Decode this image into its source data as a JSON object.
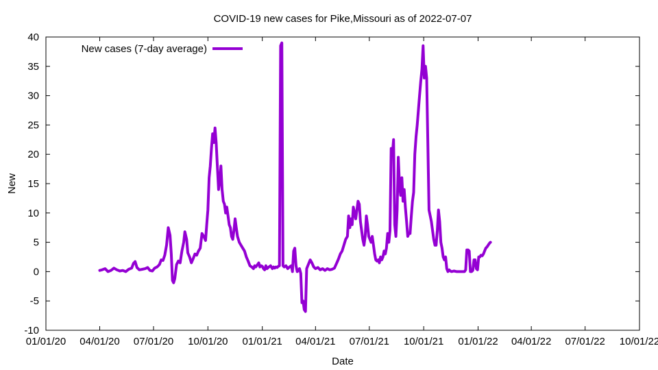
{
  "chart_data": {
    "type": "line",
    "title": "COVID-19 new cases for Pike,Missouri as of 2022-07-07",
    "xlabel": "Date",
    "ylabel": "New",
    "ylim": [
      -10,
      40
    ],
    "yticks": [
      -10,
      -5,
      0,
      5,
      10,
      15,
      20,
      25,
      30,
      35,
      40
    ],
    "xlim_days": [
      0,
      1004
    ],
    "xticks": [
      {
        "day": 0,
        "label": "01/01/20"
      },
      {
        "day": 91,
        "label": "04/01/20"
      },
      {
        "day": 182,
        "label": "07/01/20"
      },
      {
        "day": 274,
        "label": "10/01/20"
      },
      {
        "day": 366,
        "label": "01/01/21"
      },
      {
        "day": 456,
        "label": "04/01/21"
      },
      {
        "day": 547,
        "label": "07/01/21"
      },
      {
        "day": 639,
        "label": "10/01/21"
      },
      {
        "day": 731,
        "label": "01/01/22"
      },
      {
        "day": 821,
        "label": "04/01/22"
      },
      {
        "day": 912,
        "label": "07/01/22"
      },
      {
        "day": 1004,
        "label": "10/01/22"
      }
    ],
    "legend_position": "top-left",
    "series": [
      {
        "name": "New cases (7-day average)",
        "color": "#9400d3",
        "x_unit": "days since 2020-01-01",
        "points": [
          [
            91,
            0.2
          ],
          [
            95,
            0.3
          ],
          [
            100,
            0.5
          ],
          [
            105,
            0.0
          ],
          [
            110,
            0.2
          ],
          [
            115,
            0.6
          ],
          [
            120,
            0.3
          ],
          [
            125,
            0.1
          ],
          [
            130,
            0.2
          ],
          [
            135,
            0.0
          ],
          [
            140,
            0.4
          ],
          [
            145,
            0.6
          ],
          [
            148,
            1.4
          ],
          [
            151,
            1.7
          ],
          [
            154,
            0.7
          ],
          [
            158,
            0.3
          ],
          [
            163,
            0.4
          ],
          [
            168,
            0.5
          ],
          [
            172,
            0.7
          ],
          [
            176,
            0.2
          ],
          [
            180,
            0.1
          ],
          [
            184,
            0.6
          ],
          [
            188,
            0.8
          ],
          [
            192,
            1.2
          ],
          [
            195,
            2.0
          ],
          [
            198,
            1.9
          ],
          [
            201,
            2.8
          ],
          [
            204,
            4.5
          ],
          [
            207,
            7.5
          ],
          [
            210,
            6.2
          ],
          [
            212,
            3.0
          ],
          [
            214,
            -1.5
          ],
          [
            216,
            -1.9
          ],
          [
            218,
            -1.2
          ],
          [
            221,
            1.2
          ],
          [
            224,
            1.8
          ],
          [
            227,
            1.5
          ],
          [
            230,
            3.5
          ],
          [
            233,
            5.0
          ],
          [
            235,
            6.8
          ],
          [
            238,
            5.5
          ],
          [
            240,
            3.2
          ],
          [
            243,
            2.5
          ],
          [
            246,
            1.5
          ],
          [
            249,
            2.2
          ],
          [
            252,
            3.0
          ],
          [
            255,
            2.8
          ],
          [
            258,
            3.5
          ],
          [
            261,
            4.0
          ],
          [
            264,
            6.5
          ],
          [
            267,
            6.0
          ],
          [
            270,
            5.3
          ],
          [
            272,
            8.0
          ],
          [
            274,
            10.5
          ],
          [
            276,
            16.0
          ],
          [
            278,
            18.0
          ],
          [
            280,
            21.0
          ],
          [
            282,
            23.5
          ],
          [
            284,
            22.0
          ],
          [
            286,
            24.5
          ],
          [
            288,
            22.0
          ],
          [
            290,
            18.0
          ],
          [
            292,
            14.0
          ],
          [
            294,
            15.5
          ],
          [
            296,
            18.0
          ],
          [
            298,
            14.0
          ],
          [
            300,
            12.0
          ],
          [
            302,
            11.5
          ],
          [
            304,
            10.0
          ],
          [
            306,
            11.0
          ],
          [
            308,
            9.5
          ],
          [
            310,
            8.0
          ],
          [
            312,
            7.5
          ],
          [
            314,
            6.0
          ],
          [
            316,
            5.5
          ],
          [
            318,
            7.0
          ],
          [
            320,
            9.0
          ],
          [
            322,
            7.5
          ],
          [
            324,
            6.0
          ],
          [
            327,
            5.0
          ],
          [
            330,
            4.5
          ],
          [
            333,
            4.0
          ],
          [
            336,
            3.5
          ],
          [
            339,
            2.5
          ],
          [
            342,
            1.8
          ],
          [
            345,
            1.0
          ],
          [
            348,
            0.8
          ],
          [
            351,
            0.5
          ],
          [
            353,
            1.0
          ],
          [
            355,
            0.8
          ],
          [
            358,
            1.2
          ],
          [
            360,
            1.5
          ],
          [
            362,
            0.8
          ],
          [
            364,
            1.0
          ],
          [
            366,
            0.9
          ],
          [
            368,
            0.5
          ],
          [
            370,
            0.3
          ],
          [
            372,
            1.0
          ],
          [
            374,
            0.5
          ],
          [
            376,
            0.7
          ],
          [
            380,
            1.0
          ],
          [
            383,
            0.5
          ],
          [
            385,
            0.8
          ],
          [
            387,
            0.6
          ],
          [
            389,
            0.8
          ],
          [
            391,
            0.7
          ],
          [
            393,
            0.9
          ],
          [
            395,
            1.0
          ],
          [
            397,
            38.5
          ],
          [
            399,
            39.0
          ],
          [
            401,
            1.0
          ],
          [
            403,
            0.8
          ],
          [
            406,
            1.0
          ],
          [
            409,
            0.5
          ],
          [
            412,
            0.8
          ],
          [
            415,
            1.0
          ],
          [
            417,
            0.0
          ],
          [
            419,
            3.5
          ],
          [
            421,
            4.0
          ],
          [
            423,
            1.0
          ],
          [
            425,
            0.0
          ],
          [
            427,
            0.2
          ],
          [
            429,
            0.5
          ],
          [
            431,
            -0.3
          ],
          [
            433,
            -5.3
          ],
          [
            435,
            -5.0
          ],
          [
            437,
            -6.5
          ],
          [
            439,
            -6.8
          ],
          [
            441,
            0.5
          ],
          [
            443,
            1.0
          ],
          [
            445,
            1.5
          ],
          [
            447,
            2.0
          ],
          [
            450,
            1.5
          ],
          [
            453,
            0.8
          ],
          [
            456,
            0.5
          ],
          [
            460,
            0.7
          ],
          [
            464,
            0.3
          ],
          [
            468,
            0.5
          ],
          [
            472,
            0.2
          ],
          [
            476,
            0.5
          ],
          [
            480,
            0.3
          ],
          [
            484,
            0.4
          ],
          [
            488,
            0.6
          ],
          [
            492,
            1.5
          ],
          [
            495,
            2.2
          ],
          [
            498,
            3.0
          ],
          [
            501,
            3.5
          ],
          [
            504,
            4.5
          ],
          [
            507,
            5.5
          ],
          [
            510,
            6.0
          ],
          [
            512,
            9.5
          ],
          [
            514,
            7.5
          ],
          [
            516,
            9.0
          ],
          [
            518,
            8.0
          ],
          [
            520,
            11.0
          ],
          [
            522,
            10.0
          ],
          [
            524,
            9.0
          ],
          [
            526,
            10.5
          ],
          [
            528,
            12.0
          ],
          [
            530,
            11.5
          ],
          [
            532,
            8.5
          ],
          [
            534,
            7.0
          ],
          [
            536,
            5.5
          ],
          [
            538,
            4.5
          ],
          [
            540,
            6.0
          ],
          [
            542,
            9.5
          ],
          [
            544,
            8.0
          ],
          [
            546,
            6.0
          ],
          [
            548,
            5.5
          ],
          [
            550,
            5.0
          ],
          [
            552,
            6.0
          ],
          [
            554,
            4.5
          ],
          [
            556,
            3.0
          ],
          [
            558,
            2.0
          ],
          [
            560,
            1.8
          ],
          [
            562,
            2.0
          ],
          [
            564,
            1.5
          ],
          [
            566,
            2.5
          ],
          [
            568,
            2.0
          ],
          [
            570,
            2.5
          ],
          [
            572,
            3.5
          ],
          [
            574,
            3.0
          ],
          [
            576,
            4.0
          ],
          [
            578,
            6.5
          ],
          [
            580,
            5.0
          ],
          [
            582,
            7.0
          ],
          [
            584,
            21.0
          ],
          [
            586,
            20.0
          ],
          [
            588,
            22.5
          ],
          [
            590,
            8.0
          ],
          [
            592,
            6.0
          ],
          [
            594,
            10.5
          ],
          [
            596,
            19.5
          ],
          [
            598,
            15.0
          ],
          [
            600,
            13.0
          ],
          [
            602,
            16.0
          ],
          [
            604,
            12.0
          ],
          [
            606,
            14.0
          ],
          [
            608,
            11.0
          ],
          [
            610,
            8.5
          ],
          [
            612,
            6.0
          ],
          [
            614,
            6.5
          ],
          [
            616,
            6.5
          ],
          [
            618,
            9.5
          ],
          [
            620,
            12.0
          ],
          [
            622,
            13.5
          ],
          [
            624,
            20.0
          ],
          [
            626,
            23.0
          ],
          [
            628,
            25.0
          ],
          [
            630,
            27.5
          ],
          [
            632,
            30.0
          ],
          [
            634,
            32.5
          ],
          [
            636,
            34.5
          ],
          [
            638,
            38.5
          ],
          [
            640,
            33.0
          ],
          [
            642,
            35.0
          ],
          [
            644,
            33.0
          ],
          [
            646,
            22.0
          ],
          [
            648,
            10.5
          ],
          [
            650,
            9.5
          ],
          [
            652,
            8.5
          ],
          [
            654,
            7.0
          ],
          [
            656,
            5.5
          ],
          [
            658,
            4.5
          ],
          [
            660,
            4.5
          ],
          [
            662,
            7.0
          ],
          [
            664,
            10.5
          ],
          [
            666,
            8.5
          ],
          [
            668,
            5.0
          ],
          [
            670,
            4.0
          ],
          [
            672,
            2.5
          ],
          [
            674,
            2.0
          ],
          [
            676,
            2.5
          ],
          [
            678,
            0.5
          ],
          [
            680,
            0.0
          ],
          [
            682,
            0.3
          ],
          [
            684,
            0.1
          ],
          [
            686,
            0.0
          ],
          [
            690,
            0.1
          ],
          [
            695,
            0.0
          ],
          [
            700,
            0.0
          ],
          [
            705,
            0.0
          ],
          [
            708,
            0.0
          ],
          [
            710,
            0.3
          ],
          [
            712,
            3.7
          ],
          [
            714,
            3.7
          ],
          [
            716,
            3.5
          ],
          [
            718,
            0.0
          ],
          [
            720,
            0.0
          ],
          [
            722,
            0.2
          ],
          [
            724,
            2.0
          ],
          [
            726,
            2.0
          ],
          [
            728,
            0.5
          ],
          [
            730,
            0.3
          ],
          [
            732,
            2.5
          ],
          [
            734,
            2.5
          ],
          [
            736,
            2.8
          ],
          [
            738,
            2.7
          ],
          [
            740,
            3.0
          ],
          [
            742,
            3.5
          ],
          [
            744,
            4.0
          ],
          [
            746,
            4.2
          ],
          [
            748,
            4.5
          ],
          [
            750,
            4.8
          ],
          [
            752,
            5.0
          ]
        ]
      }
    ]
  }
}
